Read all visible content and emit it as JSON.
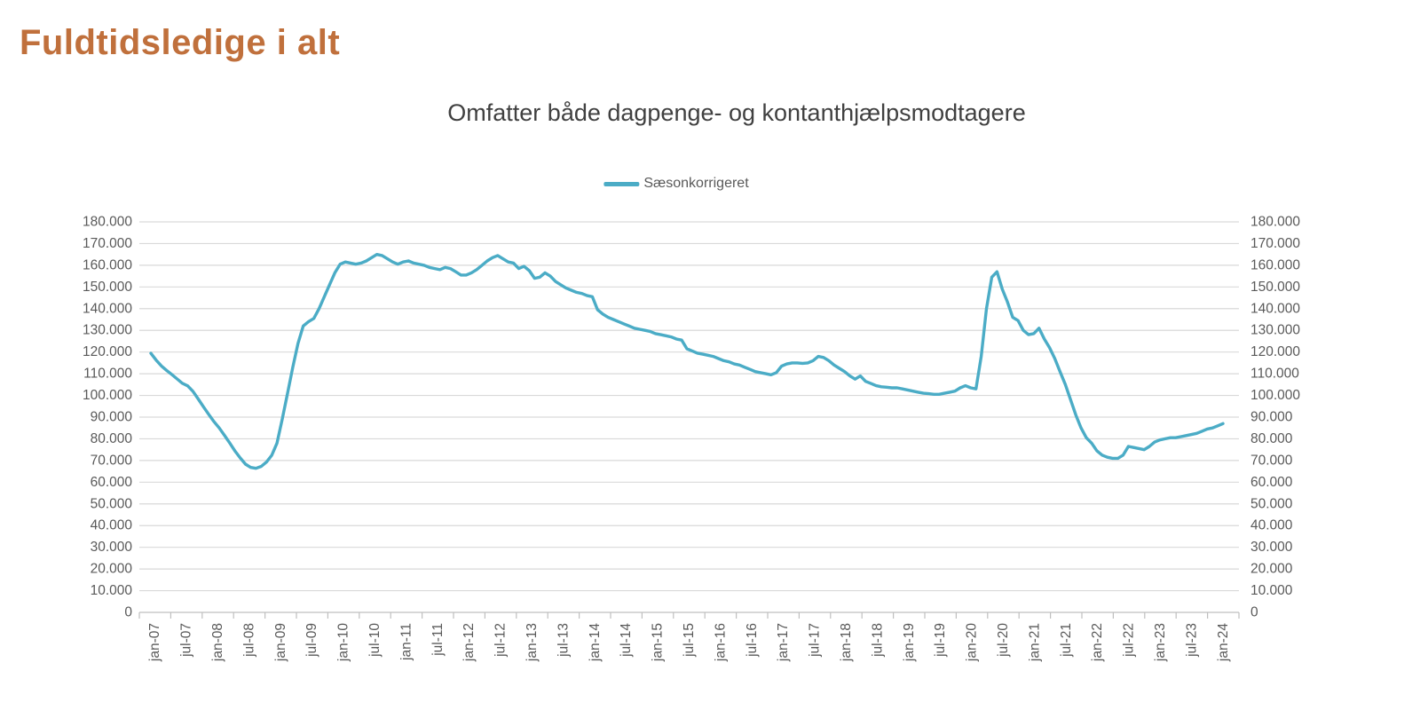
{
  "page": {
    "title": "Fuldtidsledige i alt"
  },
  "colors": {
    "title": "#C0703C",
    "subtitle": "#404040",
    "axis_text": "#595959",
    "gridline": "#D9D9D9",
    "axis_line": "#BFBFBF",
    "series": "#4BACC6",
    "background": "#FFFFFF"
  },
  "chart_data": {
    "type": "line",
    "title": "Omfatter både dagpenge- og kontanthjælpsmodtagere",
    "x_start": "jan-07",
    "x_end": "jan-24",
    "x_interval": "monthly",
    "x_tick_labels": [
      "jan-07",
      "jul-07",
      "jan-08",
      "jul-08",
      "jan-09",
      "jul-09",
      "jan-10",
      "jul-10",
      "jan-11",
      "jul-11",
      "jan-12",
      "jul-12",
      "jan-13",
      "jul-13",
      "jan-14",
      "jul-14",
      "jan-15",
      "jul-15",
      "jan-16",
      "jul-16",
      "jan-17",
      "jul-17",
      "jan-18",
      "jul-18",
      "jan-19",
      "jul-19",
      "jan-20",
      "jul-20",
      "jan-21",
      "jul-21",
      "jan-22",
      "jul-22",
      "jan-23",
      "jul-23",
      "jan-24"
    ],
    "ylim": [
      0,
      180000
    ],
    "y_tick_step": 10000,
    "y_tick_labels": [
      "0",
      "10.000",
      "20.000",
      "30.000",
      "40.000",
      "50.000",
      "60.000",
      "70.000",
      "80.000",
      "90.000",
      "100.000",
      "110.000",
      "120.000",
      "130.000",
      "140.000",
      "150.000",
      "160.000",
      "170.000",
      "180.000"
    ],
    "grid": "horizontal",
    "legend_position": "top-center",
    "y_axis": "both-sides",
    "series": [
      {
        "name": "Sæsonkorrigeret",
        "color": "#4BACC6",
        "values": [
          119400,
          116300,
          113600,
          111500,
          109600,
          107600,
          105600,
          104400,
          101900,
          98400,
          94800,
          91300,
          87900,
          85000,
          81600,
          78100,
          74400,
          71200,
          68300,
          66800,
          66400,
          67300,
          69300,
          72400,
          78000,
          89000,
          101000,
          113000,
          124000,
          132000,
          134000,
          135500,
          140000,
          145500,
          151000,
          156500,
          160500,
          161500,
          161000,
          160500,
          161000,
          162000,
          163500,
          165000,
          164500,
          163000,
          161500,
          160500,
          161500,
          162000,
          161000,
          160500,
          160000,
          159000,
          158500,
          158000,
          159000,
          158500,
          157000,
          155500,
          155500,
          156500,
          158000,
          160000,
          162000,
          163500,
          164500,
          163000,
          161500,
          161000,
          158500,
          159500,
          157500,
          154000,
          154500,
          156500,
          155000,
          152500,
          151000,
          149500,
          148500,
          147500,
          147000,
          146000,
          145500,
          139500,
          137500,
          136000,
          135000,
          134000,
          133000,
          132000,
          131000,
          130500,
          130000,
          129500,
          128500,
          128000,
          127500,
          127000,
          126000,
          125500,
          121500,
          120500,
          119500,
          119000,
          118500,
          118000,
          117000,
          116000,
          115500,
          114500,
          114000,
          113000,
          112000,
          111000,
          110500,
          110000,
          109500,
          110500,
          113500,
          114500,
          115000,
          115000,
          114800,
          115000,
          116000,
          118000,
          117500,
          116000,
          114000,
          112500,
          111000,
          109000,
          107500,
          109000,
          106500,
          105500,
          104500,
          104000,
          103800,
          103500,
          103500,
          103000,
          102500,
          102000,
          101500,
          101000,
          100800,
          100500,
          100500,
          101000,
          101500,
          102000,
          103500,
          104500,
          103500,
          103000,
          118000,
          140000,
          154500,
          157000,
          149000,
          143000,
          136000,
          134500,
          130000,
          128000,
          128500,
          131000,
          126000,
          122000,
          117000,
          111000,
          105000,
          98000,
          91000,
          85000,
          80500,
          78000,
          74500,
          72500,
          71500,
          71000,
          71000,
          72500,
          76500,
          76000,
          75500,
          75000,
          76500,
          78500,
          79500,
          80000,
          80500,
          80500,
          81000,
          81500,
          82000,
          82500,
          83500,
          84500,
          85000,
          86000,
          87000
        ]
      }
    ]
  }
}
